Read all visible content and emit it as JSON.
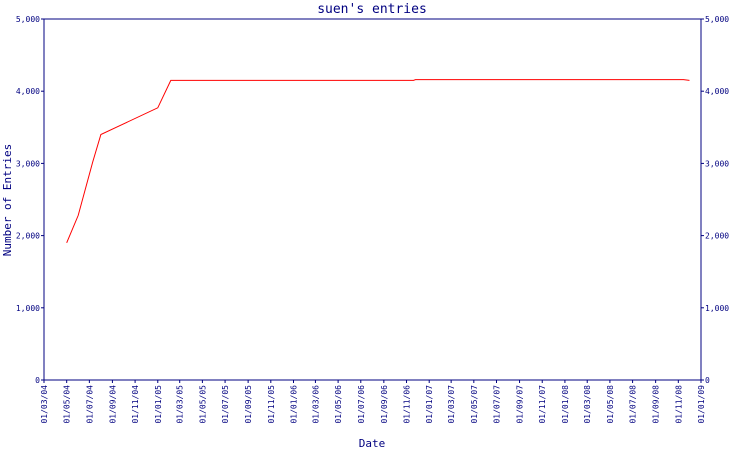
{
  "chart_data": {
    "type": "line",
    "title": "suen's entries",
    "x_label": "Date",
    "y_label": "Number of Entries",
    "x": [
      "01/05/04",
      "01/06/04",
      "10/07/04",
      "01/08/04",
      "01/01/05",
      "05/02/05",
      "20/11/06",
      "25/11/06",
      "15/11/08",
      "01/12/08"
    ],
    "series": [
      {
        "name": "Entries",
        "color": "#ff0000",
        "values": [
          1900,
          2280,
          3020,
          3400,
          3770,
          4150,
          4150,
          4160,
          4160,
          4150
        ]
      }
    ],
    "xlim": [
      "01/03/04",
      "01/01/09"
    ],
    "xticks": [
      "01/03/04",
      "01/05/04",
      "01/07/04",
      "01/09/04",
      "01/11/04",
      "01/01/05",
      "01/03/05",
      "01/05/05",
      "01/07/05",
      "01/09/05",
      "01/11/05",
      "01/01/06",
      "01/03/06",
      "01/05/06",
      "01/07/06",
      "01/09/06",
      "01/11/06",
      "01/01/07",
      "01/03/07",
      "01/05/07",
      "01/07/07",
      "01/09/07",
      "01/11/07",
      "01/01/08",
      "01/03/08",
      "01/05/08",
      "01/07/08",
      "01/09/08",
      "01/11/08",
      "01/01/09"
    ],
    "ylim": [
      0,
      5000
    ],
    "yticks": [
      0,
      {
        "value": 1000,
        "label": "1,000"
      },
      {
        "value": 2000,
        "label": "2,000"
      },
      {
        "value": 3000,
        "label": "3,000"
      },
      {
        "value": 4000,
        "label": "4,000"
      },
      {
        "value": 5000,
        "label": "5,000"
      }
    ],
    "axis_color": "#000080",
    "date_format": "dd/mm/yy"
  }
}
